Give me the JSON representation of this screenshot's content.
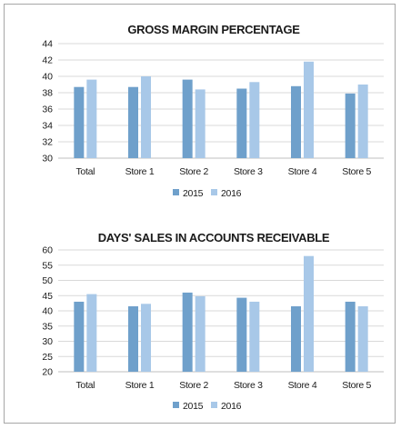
{
  "chart_data": [
    {
      "type": "bar",
      "title": "GROSS MARGIN PERCENTAGE",
      "categories": [
        "Total",
        "Store 1",
        "Store 2",
        "Store 3",
        "Store 4",
        "Store 5"
      ],
      "series": [
        {
          "name": "2015",
          "values": [
            38.7,
            38.7,
            39.6,
            38.5,
            38.8,
            37.9
          ],
          "color": "#6fa0cb"
        },
        {
          "name": "2016",
          "values": [
            39.6,
            40.0,
            38.4,
            39.3,
            41.8,
            39.0
          ],
          "color": "#a8c8e8"
        }
      ],
      "ylim": [
        30,
        44
      ],
      "yticks": [
        30,
        32,
        34,
        36,
        38,
        40,
        42,
        44
      ],
      "grid": true,
      "legend": "bottom"
    },
    {
      "type": "bar",
      "title": "DAYS' SALES IN ACCOUNTS RECEIVABLE",
      "categories": [
        "Total",
        "Store 1",
        "Store 2",
        "Store 3",
        "Store 4",
        "Store 5"
      ],
      "series": [
        {
          "name": "2015",
          "values": [
            43.0,
            41.5,
            46.0,
            44.3,
            41.5,
            43.0
          ],
          "color": "#6fa0cb"
        },
        {
          "name": "2016",
          "values": [
            45.5,
            42.3,
            44.8,
            43.0,
            58.0,
            41.5
          ],
          "color": "#a8c8e8"
        }
      ],
      "ylim": [
        20,
        60
      ],
      "yticks": [
        20,
        25,
        30,
        35,
        40,
        45,
        50,
        55,
        60
      ],
      "grid": true,
      "legend": "bottom"
    }
  ]
}
